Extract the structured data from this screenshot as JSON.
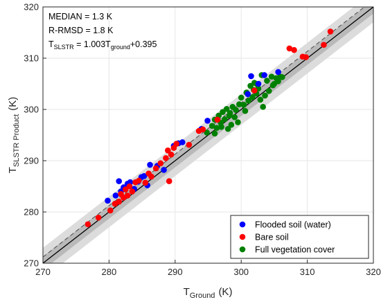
{
  "chart_data": {
    "type": "scatter",
    "xlabel": {
      "main": "T",
      "sub": "Ground",
      "unit": "(K)"
    },
    "ylabel": {
      "main": "T",
      "sub": "SLSTR Product",
      "unit": "(K)"
    },
    "xlim": [
      270,
      320
    ],
    "ylim": [
      270,
      320
    ],
    "xticks": [
      "270",
      "280",
      "290",
      "300",
      "310",
      "320"
    ],
    "yticks": [
      "270",
      "280",
      "290",
      "300",
      "310",
      "320"
    ],
    "grid": true,
    "legend_position": "bottom-right",
    "annotations": [
      {
        "text": "MEDIAN = 1.3 K"
      },
      {
        "text": "R-RMSD = 1.8 K"
      },
      {
        "pre": "T",
        "pre_sub": "SLSTR",
        "mid": " = 1.003T",
        "mid_sub": "ground",
        "post": "+0.395"
      }
    ],
    "reference_lines": {
      "one_to_one": {
        "slope": 1.0,
        "intercept": 0.0,
        "style": "solid",
        "color": "#000000"
      },
      "fit": {
        "slope": 1.003,
        "intercept": 0.395,
        "style": "dashed",
        "color": "#555555"
      },
      "inner_band_halfwidth": 1.3,
      "outer_band_halfwidth": 3.0
    },
    "series": [
      {
        "name": "Flooded soil (water)",
        "color": "#0000ff",
        "points": [
          [
            279.8,
            282.2
          ],
          [
            281.0,
            283.2
          ],
          [
            281.5,
            286.0
          ],
          [
            281.8,
            284.0
          ],
          [
            282.2,
            284.8
          ],
          [
            282.8,
            285.5
          ],
          [
            283.2,
            285.8
          ],
          [
            283.8,
            284.5
          ],
          [
            284.4,
            285.9
          ],
          [
            284.9,
            286.8
          ],
          [
            285.3,
            287.0
          ],
          [
            285.8,
            285.2
          ],
          [
            286.2,
            289.2
          ],
          [
            287.3,
            289.0
          ],
          [
            288.3,
            288.2
          ],
          [
            289.8,
            292.9
          ],
          [
            290.5,
            293.4
          ],
          [
            291.1,
            293.6
          ],
          [
            294.0,
            296.2
          ],
          [
            294.9,
            297.8
          ],
          [
            301.0,
            303.0
          ],
          [
            301.5,
            306.5
          ],
          [
            302.6,
            305.0
          ],
          [
            303.5,
            306.7
          ],
          [
            305.6,
            307.3
          ]
        ]
      },
      {
        "name": "Bare soil",
        "color": "#ff0000",
        "points": [
          [
            276.8,
            277.6
          ],
          [
            278.4,
            278.9
          ],
          [
            280.2,
            280.3
          ],
          [
            280.9,
            281.6
          ],
          [
            281.5,
            282.0
          ],
          [
            281.8,
            283.5
          ],
          [
            282.2,
            282.8
          ],
          [
            282.5,
            284.4
          ],
          [
            282.8,
            283.2
          ],
          [
            283.1,
            285.0
          ],
          [
            283.5,
            284.0
          ],
          [
            284.0,
            285.8
          ],
          [
            284.5,
            286.1
          ],
          [
            285.5,
            285.7
          ],
          [
            286.0,
            287.5
          ],
          [
            286.4,
            286.9
          ],
          [
            287.1,
            288.5
          ],
          [
            287.8,
            289.5
          ],
          [
            288.6,
            290.5
          ],
          [
            288.9,
            292.0
          ],
          [
            289.1,
            286.0
          ],
          [
            289.4,
            291.2
          ],
          [
            289.8,
            292.5
          ],
          [
            290.2,
            293.3
          ],
          [
            292.1,
            293.1
          ],
          [
            293.6,
            295.8
          ],
          [
            294.2,
            296.1
          ],
          [
            296.4,
            298.0
          ],
          [
            302.0,
            303.7
          ],
          [
            307.3,
            311.9
          ],
          [
            308.0,
            311.6
          ],
          [
            309.3,
            310.3
          ],
          [
            309.8,
            310.2
          ],
          [
            312.5,
            312.6
          ],
          [
            313.5,
            315.2
          ]
        ]
      },
      {
        "name": "Full vegetation cover",
        "color": "#008000",
        "points": [
          [
            294.8,
            295.5
          ],
          [
            295.6,
            296.8
          ],
          [
            296.0,
            298.0
          ],
          [
            296.3,
            296.4
          ],
          [
            296.6,
            298.8
          ],
          [
            296.9,
            297.4
          ],
          [
            297.2,
            299.5
          ],
          [
            297.5,
            298.1
          ],
          [
            297.8,
            300.1
          ],
          [
            298.0,
            296.2
          ],
          [
            298.3,
            299.3
          ],
          [
            298.5,
            297.0
          ],
          [
            298.7,
            300.5
          ],
          [
            299.0,
            298.5
          ],
          [
            299.2,
            299.9
          ],
          [
            299.5,
            297.5
          ],
          [
            300.0,
            302.3
          ],
          [
            300.4,
            300.9
          ],
          [
            300.8,
            303.3
          ],
          [
            301.1,
            301.7
          ],
          [
            301.4,
            304.6
          ],
          [
            301.7,
            302.4
          ],
          [
            302.0,
            305.2
          ],
          [
            302.3,
            303.1
          ],
          [
            302.6,
            304.1
          ],
          [
            302.9,
            301.9
          ],
          [
            303.1,
            306.7
          ],
          [
            303.3,
            300.5
          ],
          [
            303.6,
            302.7
          ],
          [
            303.9,
            305.6
          ],
          [
            304.2,
            303.6
          ],
          [
            304.6,
            306.4
          ],
          [
            305.0,
            305.0
          ],
          [
            305.3,
            306.1
          ],
          [
            305.6,
            305.5
          ],
          [
            305.9,
            306.4
          ],
          [
            306.2,
            306.3
          ],
          [
            296.0,
            295.3
          ],
          [
            297.0,
            296.6
          ],
          [
            299.7,
            301.0
          ],
          [
            300.6,
            299.7
          ],
          [
            302.4,
            304.9
          ],
          [
            304.8,
            304.7
          ],
          [
            298.2,
            298.8
          ],
          [
            301.9,
            303.8
          ]
        ]
      }
    ]
  }
}
